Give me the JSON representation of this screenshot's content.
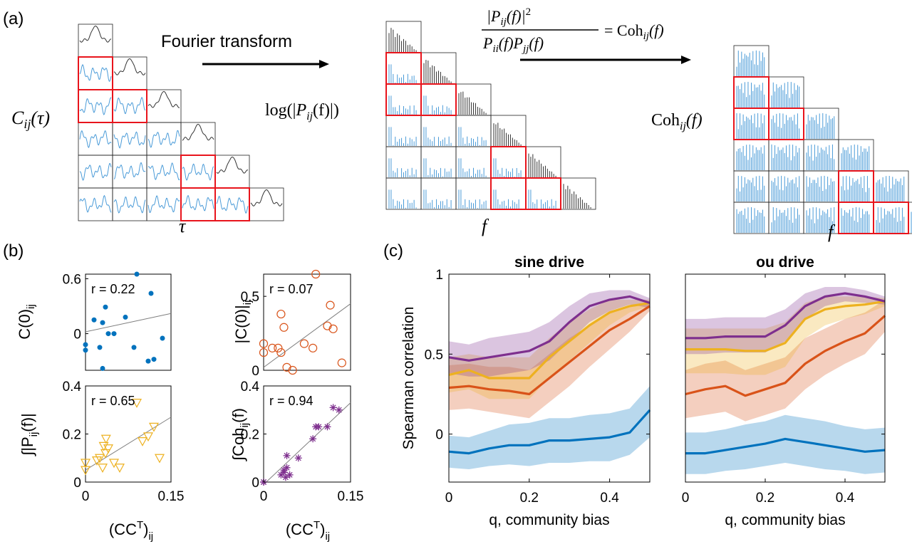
{
  "panel_labels": {
    "a": "(a)",
    "b": "(b)",
    "c": "(c)"
  },
  "colors": {
    "blue": "#0072BD",
    "orange": "#D95319",
    "yellow": "#EDB120",
    "purple": "#7E2F8E",
    "cell_blue": "#4A9BD8",
    "highlight": "#E8141C",
    "gray_line": "#7f7f7f"
  },
  "panel_a": {
    "arrow1_label": "Fourier transform",
    "left_ylabel": "C_ij(τ)",
    "left_ylabel_main": "C",
    "left_ylabel_sub": "ij",
    "left_ylabel_arg": "(τ)",
    "left_xlabel": "τ",
    "mid_ylabel": "log(|P_ij(f)|)",
    "mid_ylabel_pre": "log(|",
    "mid_ylabel_P": "P",
    "mid_ylabel_sub": "ij",
    "mid_ylabel_post": "(f)|)",
    "mid_xlabel": "f",
    "formula_num": "|P_ij(f)|^2",
    "formula_den": "P_ii(f) P_jj(f)",
    "formula_rhs": "= Coh_ij(f)",
    "right_ylabel": "Coh_ij(f)",
    "right_ylabel_main": "Coh",
    "right_ylabel_sub": "ij",
    "right_ylabel_arg": "(f)",
    "right_xlabel": "f",
    "highlighted_cells": [
      [
        1,
        0
      ],
      [
        2,
        0
      ],
      [
        2,
        1
      ],
      [
        4,
        3
      ],
      [
        5,
        3
      ],
      [
        5,
        4
      ]
    ]
  },
  "chart_data": [
    {
      "type": "scatter",
      "panel": "b1",
      "ylabel": "C(0)_ij",
      "xlim": [
        0,
        0.15
      ],
      "ylim": [
        -0.4,
        0.65
      ],
      "yticks": [
        "0.6",
        "0"
      ],
      "annotation": "r = 0.22",
      "marker": "filled-circle",
      "color": "#0072BD",
      "x": [
        0.0,
        0.0,
        0.015,
        0.025,
        0.03,
        0.03,
        0.035,
        0.04,
        0.05,
        0.07,
        0.085,
        0.09,
        0.11,
        0.115,
        0.12,
        0.135
      ],
      "y": [
        -0.12,
        -0.18,
        0.15,
        -0.15,
        0.12,
        -0.38,
        0.29,
        0.0,
        0.0,
        0.18,
        -0.15,
        0.65,
        -0.3,
        0.44,
        -0.28,
        -0.05
      ],
      "fit": [
        [
          0,
          0.02
        ],
        [
          0.15,
          0.22
        ]
      ]
    },
    {
      "type": "scatter",
      "panel": "b2",
      "ylabel": "|C(0)|_ij",
      "xlim": [
        0,
        0.15
      ],
      "ylim": [
        0,
        0.65
      ],
      "yticks": [
        "0.5",
        "0"
      ],
      "annotation": "r = 0.07",
      "marker": "open-circle",
      "color": "#D95319",
      "x": [
        0.0,
        0.0,
        0.015,
        0.025,
        0.03,
        0.03,
        0.035,
        0.04,
        0.05,
        0.07,
        0.085,
        0.09,
        0.11,
        0.115,
        0.12,
        0.135
      ],
      "y": [
        0.12,
        0.18,
        0.15,
        0.15,
        0.12,
        0.38,
        0.29,
        0.02,
        0.0,
        0.18,
        0.15,
        0.65,
        0.3,
        0.44,
        0.28,
        0.05
      ],
      "fit": [
        [
          0,
          0.02
        ],
        [
          0.15,
          0.45
        ]
      ]
    },
    {
      "type": "scatter",
      "panel": "b3",
      "ylabel": "∫|P_ij(f)|",
      "xlabel": "(CC^T)_ij",
      "xlim": [
        0,
        0.15
      ],
      "ylim": [
        0,
        0.4
      ],
      "yticks": [
        "0.4",
        "0.2",
        "0"
      ],
      "xticks": [
        "0",
        "0.15"
      ],
      "annotation": "r = 0.65",
      "marker": "open-triangle-down",
      "color": "#EDB120",
      "x": [
        0.0,
        0.0,
        0.02,
        0.025,
        0.03,
        0.032,
        0.035,
        0.036,
        0.04,
        0.05,
        0.06,
        0.09,
        0.1,
        0.11,
        0.12,
        0.13
      ],
      "y": [
        0.05,
        0.08,
        0.09,
        0.1,
        0.06,
        0.15,
        0.12,
        0.18,
        0.14,
        0.08,
        0.06,
        0.33,
        0.17,
        0.19,
        0.23,
        0.1
      ],
      "fit": [
        [
          0,
          0.05
        ],
        [
          0.15,
          0.27
        ]
      ]
    },
    {
      "type": "scatter",
      "panel": "b4",
      "ylabel": "∫Coh_ij(f)",
      "xlabel": "(CC^T)_ij",
      "xlim": [
        0,
        0.15
      ],
      "ylim": [
        0,
        0.4
      ],
      "yticks": [
        "0.4",
        "0.2",
        "0"
      ],
      "xticks": [
        "0",
        "0.15"
      ],
      "annotation": "r = 0.94",
      "marker": "asterisk",
      "color": "#7E2F8E",
      "x": [
        0.0,
        0.0,
        0.03,
        0.035,
        0.035,
        0.038,
        0.04,
        0.04,
        0.045,
        0.06,
        0.085,
        0.09,
        0.095,
        0.11,
        0.12,
        0.13
      ],
      "y": [
        0.0,
        0.0,
        0.03,
        0.05,
        0.04,
        0.02,
        0.06,
        0.11,
        0.03,
        0.1,
        0.18,
        0.23,
        0.23,
        0.23,
        0.31,
        0.3
      ],
      "fit": [
        [
          0,
          -0.01
        ],
        [
          0.15,
          0.33
        ]
      ]
    },
    {
      "type": "line",
      "panel": "c1",
      "title": "sine drive",
      "ylabel": "Spearman correlation",
      "xlabel": "q, community bias",
      "xlim": [
        0,
        0.5
      ],
      "ylim": [
        -0.3,
        1.0
      ],
      "xticks": [
        "0",
        "0.2",
        "0.4"
      ],
      "yticks": [
        "1",
        "0.5",
        "0"
      ],
      "x": [
        0,
        0.05,
        0.1,
        0.15,
        0.2,
        0.25,
        0.3,
        0.35,
        0.4,
        0.45,
        0.5
      ],
      "series": [
        {
          "color": "#0072BD",
          "mean": [
            -0.11,
            -0.12,
            -0.09,
            -0.07,
            -0.07,
            -0.04,
            -0.04,
            -0.03,
            -0.02,
            0.01,
            0.15
          ],
          "lo": [
            -0.21,
            -0.22,
            -0.2,
            -0.19,
            -0.2,
            -0.18,
            -0.18,
            -0.17,
            -0.17,
            -0.13,
            -0.02
          ],
          "hi": [
            -0.01,
            -0.02,
            0.02,
            0.06,
            0.07,
            0.1,
            0.1,
            0.12,
            0.13,
            0.16,
            0.3
          ]
        },
        {
          "color": "#D95319",
          "mean": [
            0.29,
            0.3,
            0.28,
            0.27,
            0.25,
            0.35,
            0.45,
            0.55,
            0.65,
            0.72,
            0.8
          ],
          "lo": [
            0.15,
            0.16,
            0.14,
            0.12,
            0.1,
            0.2,
            0.3,
            0.42,
            0.53,
            0.64,
            0.77
          ],
          "hi": [
            0.43,
            0.44,
            0.42,
            0.42,
            0.4,
            0.5,
            0.6,
            0.68,
            0.77,
            0.8,
            0.83
          ]
        },
        {
          "color": "#EDB120",
          "mean": [
            0.37,
            0.4,
            0.35,
            0.35,
            0.35,
            0.48,
            0.58,
            0.68,
            0.76,
            0.8,
            0.82
          ],
          "lo": [
            0.26,
            0.28,
            0.22,
            0.22,
            0.22,
            0.35,
            0.46,
            0.57,
            0.68,
            0.76,
            0.8
          ],
          "hi": [
            0.48,
            0.5,
            0.48,
            0.48,
            0.48,
            0.6,
            0.7,
            0.78,
            0.84,
            0.84,
            0.84
          ]
        },
        {
          "color": "#7E2F8E",
          "mean": [
            0.48,
            0.46,
            0.48,
            0.5,
            0.52,
            0.58,
            0.7,
            0.8,
            0.84,
            0.86,
            0.82
          ],
          "lo": [
            0.38,
            0.36,
            0.36,
            0.38,
            0.4,
            0.46,
            0.58,
            0.7,
            0.77,
            0.81,
            0.79
          ],
          "hi": [
            0.58,
            0.56,
            0.6,
            0.62,
            0.64,
            0.7,
            0.8,
            0.88,
            0.9,
            0.9,
            0.85
          ]
        }
      ]
    },
    {
      "type": "line",
      "panel": "c2",
      "title": "ou drive",
      "xlabel": "q, community bias",
      "xlim": [
        0,
        0.5
      ],
      "ylim": [
        -0.3,
        1.0
      ],
      "xticks": [
        "0",
        "0.2",
        "0.4"
      ],
      "x": [
        0,
        0.05,
        0.1,
        0.15,
        0.2,
        0.25,
        0.3,
        0.35,
        0.4,
        0.45,
        0.5
      ],
      "series": [
        {
          "color": "#0072BD",
          "mean": [
            -0.12,
            -0.12,
            -0.1,
            -0.08,
            -0.06,
            -0.03,
            -0.05,
            -0.07,
            -0.09,
            -0.11,
            -0.1
          ],
          "lo": [
            -0.25,
            -0.25,
            -0.23,
            -0.22,
            -0.2,
            -0.18,
            -0.2,
            -0.22,
            -0.23,
            -0.25,
            -0.24
          ],
          "hi": [
            0.01,
            0.01,
            0.03,
            0.06,
            0.08,
            0.12,
            0.1,
            0.08,
            0.05,
            0.03,
            0.04
          ]
        },
        {
          "color": "#D95319",
          "mean": [
            0.25,
            0.28,
            0.3,
            0.24,
            0.28,
            0.32,
            0.44,
            0.52,
            0.58,
            0.63,
            0.74
          ],
          "lo": [
            0.1,
            0.12,
            0.14,
            0.08,
            0.12,
            0.16,
            0.28,
            0.37,
            0.44,
            0.5,
            0.64
          ],
          "hi": [
            0.4,
            0.44,
            0.46,
            0.4,
            0.44,
            0.48,
            0.6,
            0.66,
            0.72,
            0.76,
            0.84
          ]
        },
        {
          "color": "#EDB120",
          "mean": [
            0.53,
            0.53,
            0.53,
            0.52,
            0.52,
            0.57,
            0.72,
            0.78,
            0.8,
            0.81,
            0.83
          ],
          "lo": [
            0.38,
            0.38,
            0.38,
            0.37,
            0.37,
            0.42,
            0.6,
            0.68,
            0.72,
            0.75,
            0.8
          ],
          "hi": [
            0.66,
            0.66,
            0.66,
            0.66,
            0.66,
            0.7,
            0.82,
            0.86,
            0.86,
            0.86,
            0.85
          ]
        },
        {
          "color": "#7E2F8E",
          "mean": [
            0.6,
            0.6,
            0.61,
            0.61,
            0.61,
            0.68,
            0.8,
            0.86,
            0.88,
            0.86,
            0.83
          ],
          "lo": [
            0.5,
            0.5,
            0.51,
            0.51,
            0.51,
            0.58,
            0.72,
            0.8,
            0.83,
            0.82,
            0.81
          ],
          "hi": [
            0.72,
            0.72,
            0.73,
            0.73,
            0.73,
            0.78,
            0.88,
            0.92,
            0.92,
            0.9,
            0.86
          ]
        }
      ]
    }
  ]
}
